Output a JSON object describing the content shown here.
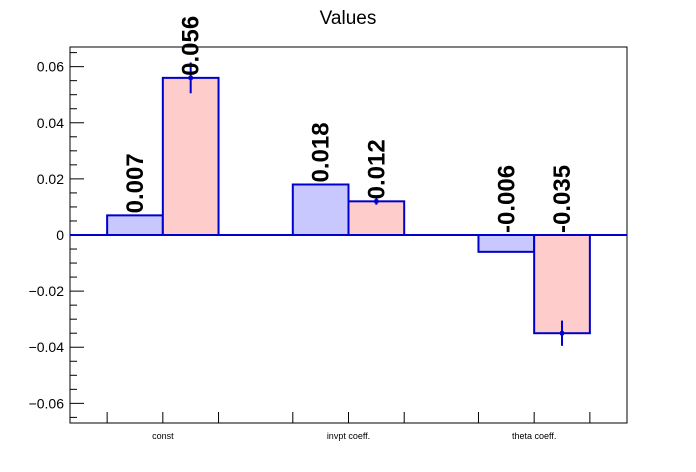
{
  "chart_data": {
    "type": "bar",
    "title": "Values",
    "xlabel": "",
    "ylabel": "",
    "ylim": [
      -0.067,
      0.067
    ],
    "yticks": [
      {
        "value": 0.06,
        "label": "0.06"
      },
      {
        "value": 0.04,
        "label": "0.04"
      },
      {
        "value": 0.02,
        "label": "0.02"
      },
      {
        "value": 0.0,
        "label": "0"
      },
      {
        "value": -0.02,
        "label": "−0.02"
      },
      {
        "value": -0.04,
        "label": "−0.04"
      },
      {
        "value": -0.06,
        "label": "−0.06"
      }
    ],
    "categories": [
      "const",
      "invpt coeff.",
      "theta coeff."
    ],
    "series": [
      {
        "color": "#c8c8ff",
        "edge": "#0000cc",
        "values": [
          0.007,
          0.018,
          -0.006
        ],
        "labels": [
          "0.007",
          "0.018",
          "-0.006"
        ],
        "errors": [
          0,
          0,
          0
        ]
      },
      {
        "color": "#ffcccc",
        "edge": "#0000cc",
        "values": [
          0.056,
          0.012,
          -0.035
        ],
        "labels": [
          "0.056",
          "0.012",
          "-0.035"
        ],
        "errors": [
          0.0055,
          0.0012,
          0.0045
        ]
      }
    ],
    "grid": false,
    "legend": "none"
  }
}
